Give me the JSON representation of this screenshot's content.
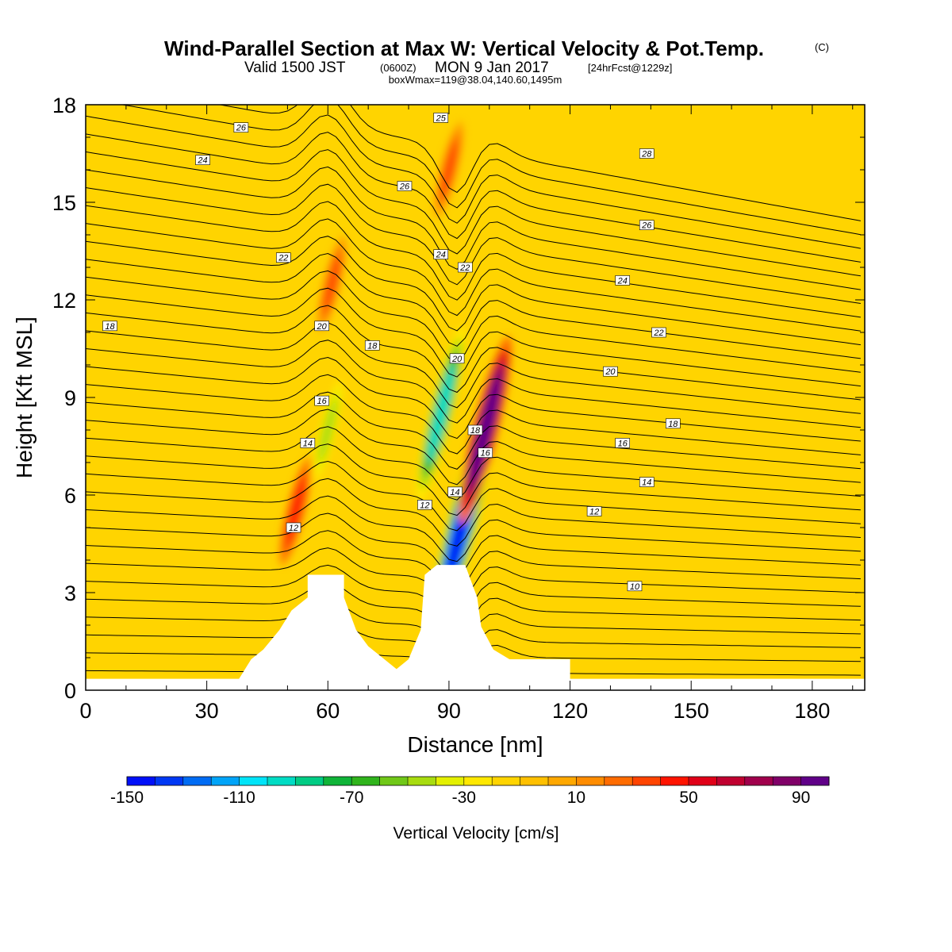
{
  "title": {
    "main": "Wind-Parallel Section at Max W: Vertical Velocity & Pot.Temp.",
    "copyright": "(C)",
    "valid_prefix": "Valid 1500 JST",
    "valid_utc": "(0600Z)",
    "valid_date": "MON 9 Jan 2017",
    "forecast": "[24hrFcst@1229z]",
    "box_info": "boxWmax=119@38.04,140.60,1495m"
  },
  "chart_data": {
    "type": "heatmap",
    "xlabel": "Distance [nm]",
    "ylabel": "Height [Kft MSL]",
    "xlim": [
      0,
      193
    ],
    "ylim": [
      0,
      18
    ],
    "x_ticks": [
      "0",
      "30",
      "60",
      "90",
      "120",
      "150",
      "180"
    ],
    "y_ticks": [
      "0",
      "3",
      "6",
      "9",
      "12",
      "15",
      "18"
    ],
    "background_value_cm_s": 0,
    "velocity_features": [
      {
        "x_nm": 52,
        "height_kft": 5.5,
        "w_cm_s": 45
      },
      {
        "x_nm": 61,
        "height_kft": 12.5,
        "w_cm_s": 35
      },
      {
        "x_nm": 60,
        "height_kft": 8.0,
        "w_cm_s": -50
      },
      {
        "x_nm": 88,
        "height_kft": 8.5,
        "w_cm_s": -100
      },
      {
        "x_nm": 93,
        "height_kft": 5.0,
        "w_cm_s": -150
      },
      {
        "x_nm": 99,
        "height_kft": 8.0,
        "w_cm_s": 110
      },
      {
        "x_nm": 90,
        "height_kft": 16.0,
        "w_cm_s": 35
      }
    ],
    "terrain_kft": [
      {
        "x": 0,
        "h": 0.0
      },
      {
        "x": 38,
        "h": 0.0
      },
      {
        "x": 41,
        "h": 0.6
      },
      {
        "x": 44,
        "h": 0.9
      },
      {
        "x": 48,
        "h": 1.5
      },
      {
        "x": 51,
        "h": 2.1
      },
      {
        "x": 55,
        "h": 2.5
      },
      {
        "x": 55,
        "h": 3.2
      },
      {
        "x": 64,
        "h": 3.2
      },
      {
        "x": 64,
        "h": 2.5
      },
      {
        "x": 67,
        "h": 1.5
      },
      {
        "x": 70,
        "h": 1.0
      },
      {
        "x": 74,
        "h": 0.6
      },
      {
        "x": 77,
        "h": 0.3
      },
      {
        "x": 80,
        "h": 0.6
      },
      {
        "x": 83,
        "h": 1.5
      },
      {
        "x": 84,
        "h": 3.2
      },
      {
        "x": 87,
        "h": 3.5
      },
      {
        "x": 94,
        "h": 3.5
      },
      {
        "x": 97,
        "h": 2.5
      },
      {
        "x": 98,
        "h": 1.6
      },
      {
        "x": 101,
        "h": 0.9
      },
      {
        "x": 105,
        "h": 0.6
      },
      {
        "x": 120,
        "h": 0.6
      },
      {
        "x": 120,
        "h": 0.0
      },
      {
        "x": 193,
        "h": 0.0
      }
    ],
    "contour_labels": [
      {
        "text": "26",
        "x": 38.5,
        "y": 17.3
      },
      {
        "text": "24",
        "x": 29,
        "y": 16.3
      },
      {
        "text": "22",
        "x": 49,
        "y": 13.3
      },
      {
        "text": "18",
        "x": 6,
        "y": 11.2
      },
      {
        "text": "20",
        "x": 58.5,
        "y": 11.2
      },
      {
        "text": "18",
        "x": 71,
        "y": 10.6
      },
      {
        "text": "16",
        "x": 58.5,
        "y": 8.9
      },
      {
        "text": "14",
        "x": 55,
        "y": 7.6
      },
      {
        "text": "12",
        "x": 51.5,
        "y": 5.0
      },
      {
        "text": "25",
        "x": 88,
        "y": 17.6
      },
      {
        "text": "26",
        "x": 79,
        "y": 15.5
      },
      {
        "text": "24",
        "x": 88,
        "y": 13.4
      },
      {
        "text": "22",
        "x": 94,
        "y": 13.0
      },
      {
        "text": "20",
        "x": 92,
        "y": 10.2
      },
      {
        "text": "18",
        "x": 96.5,
        "y": 8.0
      },
      {
        "text": "16",
        "x": 99,
        "y": 7.3
      },
      {
        "text": "14",
        "x": 91.5,
        "y": 6.1
      },
      {
        "text": "12",
        "x": 84,
        "y": 5.7
      },
      {
        "text": "28",
        "x": 139,
        "y": 16.5
      },
      {
        "text": "26",
        "x": 139,
        "y": 14.3
      },
      {
        "text": "24",
        "x": 133,
        "y": 12.6
      },
      {
        "text": "22",
        "x": 142,
        "y": 11.0
      },
      {
        "text": "20",
        "x": 130,
        "y": 9.8
      },
      {
        "text": "18",
        "x": 145.5,
        "y": 8.2
      },
      {
        "text": "16",
        "x": 133,
        "y": 7.6
      },
      {
        "text": "14",
        "x": 139,
        "y": 6.4
      },
      {
        "text": "12",
        "x": 126,
        "y": 5.5
      },
      {
        "text": "10",
        "x": 136,
        "y": 3.2
      }
    ]
  },
  "colorbar": {
    "title": "Vertical Velocity [cm/s]",
    "tick_labels": [
      "-150",
      "-110",
      "-70",
      "-30",
      "10",
      "50",
      "90"
    ],
    "colors": [
      "#0010f8",
      "#0038f4",
      "#006cf4",
      "#00a4f8",
      "#00e4f8",
      "#00dcc4",
      "#00cc84",
      "#10b438",
      "#30b41c",
      "#70c818",
      "#a8dc10",
      "#e4f000",
      "#ffe800",
      "#ffd400",
      "#ffc000",
      "#ffa800",
      "#ff8c00",
      "#ff6c00",
      "#ff4400",
      "#ff1400",
      "#e00018",
      "#c00030",
      "#a0004c",
      "#800068",
      "#600088"
    ]
  }
}
